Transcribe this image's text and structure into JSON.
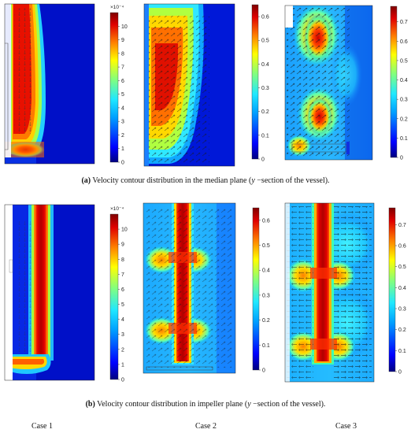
{
  "captions": {
    "a_bold": "(a)",
    "a_text": " Velocity contour distribution in the median plane (",
    "a_math": "y",
    "a_tail": " −section of the vessel).",
    "b_bold": "(b)",
    "b_text": " Velocity contour distribution in impeller plane (",
    "b_math": "y",
    "b_tail": " −section of the vessel)."
  },
  "cases": [
    "Case 1",
    "Case 2",
    "Case 3"
  ],
  "colorbars": {
    "case1": {
      "exponent": "×10⁻⁴",
      "max": 11,
      "ticks": [
        "0",
        "1",
        "2",
        "3",
        "4",
        "5",
        "6",
        "7",
        "8",
        "9",
        "10"
      ]
    },
    "case2": {
      "max": 0.65,
      "ticks": [
        "0",
        "0.1",
        "0.2",
        "0.3",
        "0.4",
        "0.5",
        "0.6"
      ]
    },
    "case3": {
      "max": 0.78,
      "ticks": [
        "0",
        "0.1",
        "0.2",
        "0.3",
        "0.4",
        "0.5",
        "0.6",
        "0.7"
      ]
    }
  },
  "colormap": [
    "#00007f",
    "#0000ff",
    "#0080ff",
    "#00e0ff",
    "#40ffc0",
    "#c0ff40",
    "#ffe000",
    "#ff8000",
    "#e00000",
    "#7f0000"
  ]
}
